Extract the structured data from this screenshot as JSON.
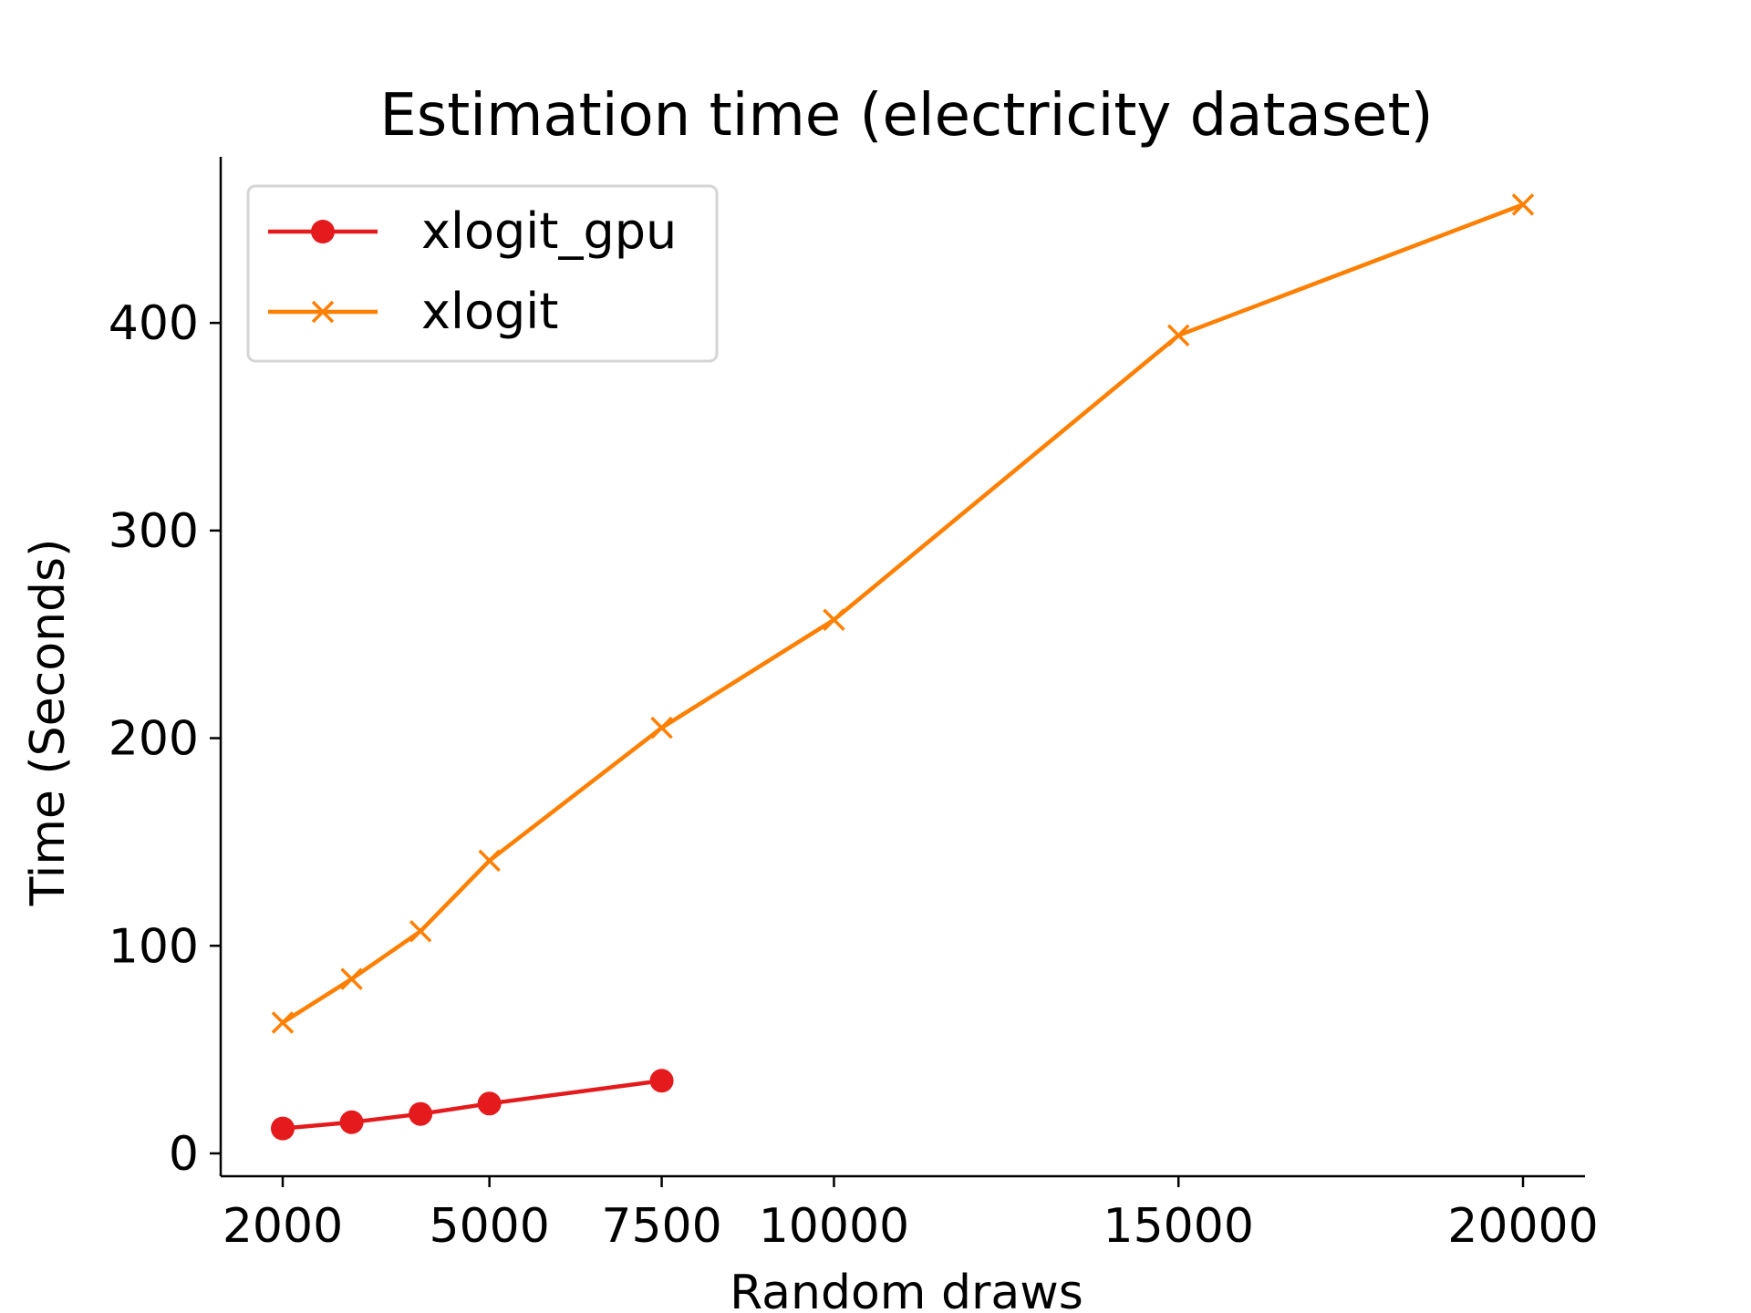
{
  "chart_data": {
    "type": "line",
    "title": "Estimation time (electricity dataset)",
    "xlabel": "Random draws",
    "ylabel": "Time (Seconds)",
    "xlim": [
      1100,
      20900
    ],
    "ylim": [
      -11,
      480
    ],
    "xticks": [
      2000,
      5000,
      7500,
      10000,
      15000,
      20000
    ],
    "xtick_labels": [
      "2000",
      "5000",
      "7500",
      "10000",
      "15000",
      "20000"
    ],
    "yticks": [
      0,
      100,
      200,
      300,
      400
    ],
    "ytick_labels": [
      "0",
      "100",
      "200",
      "300",
      "400"
    ],
    "grid": false,
    "legend_position": "top-left",
    "series": [
      {
        "name": "xlogit_gpu",
        "color": "#e41a1c",
        "marker": "circle",
        "x": [
          2000,
          3000,
          4000,
          5000,
          7500
        ],
        "y": [
          12,
          15,
          19,
          24,
          35
        ]
      },
      {
        "name": "xlogit",
        "color": "#ff7f00",
        "marker": "x",
        "x": [
          2000,
          3000,
          4000,
          5000,
          7500,
          10000,
          15000,
          20000
        ],
        "y": [
          63,
          84,
          107,
          141,
          205,
          257,
          394,
          457
        ]
      }
    ]
  }
}
